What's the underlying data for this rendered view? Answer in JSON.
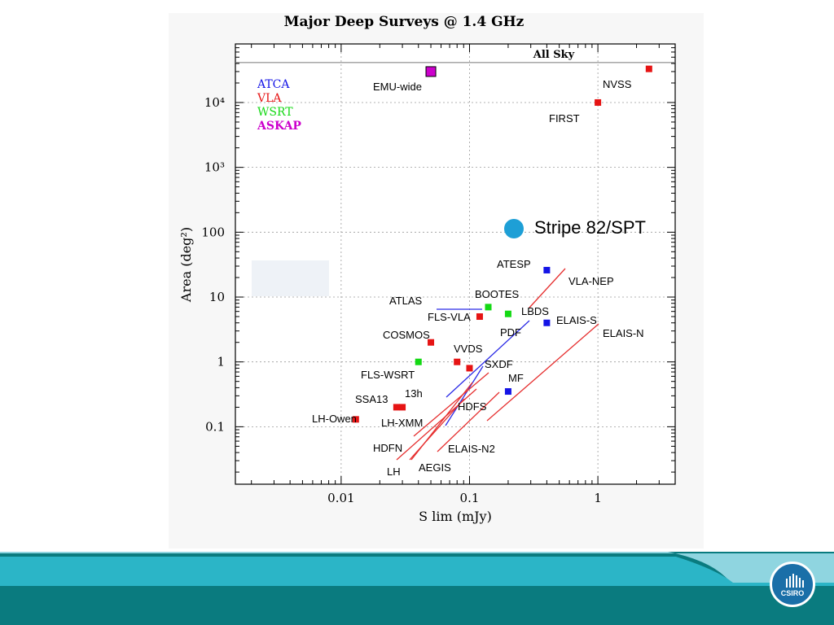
{
  "chart_data": {
    "type": "scatter",
    "title": "Major Deep Surveys @ 1.4 GHz",
    "xlabel": "S lim  (mJy)",
    "ylabel": "Area  (deg²)",
    "xscale": "log",
    "yscale": "log",
    "xlim": [
      0.0015,
      4
    ],
    "ylim": [
      0.013,
      80000
    ],
    "xticks": [
      "0.01",
      "0.1",
      "1"
    ],
    "yticks": [
      "0.1",
      "1",
      "10",
      "100",
      "10³",
      "10⁴"
    ],
    "grid": true,
    "reference_line": {
      "label": "All Sky",
      "y": 41253
    },
    "legend": [
      {
        "label": "ATCA",
        "color": "#1414e6"
      },
      {
        "label": "VLA",
        "color": "#e61414"
      },
      {
        "label": "WSRT",
        "color": "#14d914"
      },
      {
        "label": "ASKAP",
        "color": "#cc00cc"
      }
    ],
    "points": [
      {
        "label": "EMU-wide",
        "x": 0.05,
        "y": 30000,
        "instrument": "ASKAP"
      },
      {
        "label": "NVSS",
        "x": 2.5,
        "y": 33000,
        "instrument": "VLA"
      },
      {
        "label": "FIRST",
        "x": 1.0,
        "y": 10000,
        "instrument": "VLA"
      },
      {
        "label": "ATESP",
        "x": 0.4,
        "y": 26,
        "instrument": "ATCA"
      },
      {
        "label": "BOOTES",
        "x": 0.14,
        "y": 7,
        "instrument": "WSRT"
      },
      {
        "label": "PDF",
        "x": 0.2,
        "y": 5.5,
        "instrument": "WSRT"
      },
      {
        "label": "ELAIS-S",
        "x": 0.4,
        "y": 4,
        "instrument": "ATCA"
      },
      {
        "label": "FLS-VLA",
        "x": 0.12,
        "y": 5,
        "instrument": "VLA"
      },
      {
        "label": "COSMOS",
        "x": 0.05,
        "y": 2,
        "instrument": "VLA"
      },
      {
        "label": "VVDS",
        "x": 0.08,
        "y": 1,
        "instrument": "VLA"
      },
      {
        "label": "FLS-WSRT",
        "x": 0.04,
        "y": 1,
        "instrument": "WSRT"
      },
      {
        "label": "SXDF",
        "x": 0.1,
        "y": 0.8,
        "instrument": "VLA"
      },
      {
        "label": "MF",
        "x": 0.2,
        "y": 0.35,
        "instrument": "ATCA"
      },
      {
        "label": "SSA13",
        "x": 0.027,
        "y": 0.2,
        "instrument": "VLA"
      },
      {
        "label": "13h",
        "x": 0.03,
        "y": 0.2,
        "instrument": "VLA"
      },
      {
        "label": "LH-Owen",
        "x": 0.013,
        "y": 0.13,
        "instrument": "VLA"
      }
    ],
    "line_labels": [
      "ATLAS",
      "LBDS",
      "VLA-NEP",
      "ELAIS-N",
      "HDFS",
      "LH-XMM",
      "HDFN",
      "ELAIS-N2",
      "AEGIS",
      "LH"
    ],
    "annotation": {
      "label": "Stripe 82/SPT",
      "color": "#1e9fd6"
    }
  },
  "branding": {
    "logo_text": "CSIRO",
    "logo_name": "csiro-logo"
  }
}
